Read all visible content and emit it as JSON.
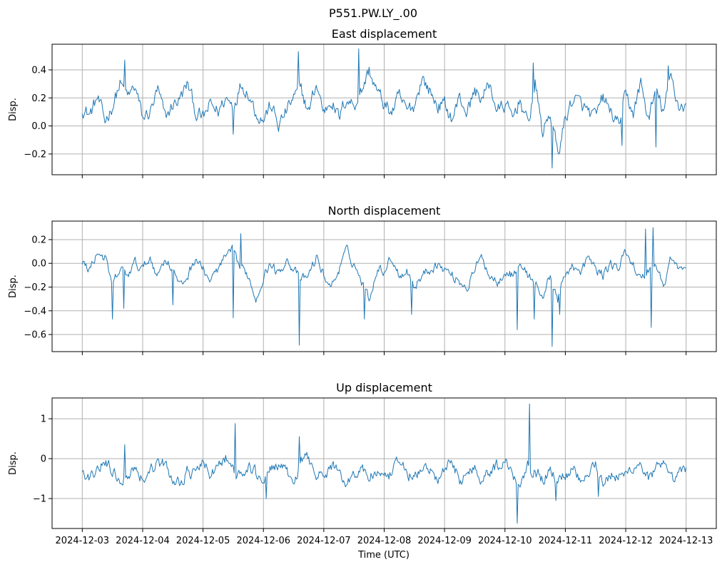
{
  "chart_data": {
    "type": "line",
    "title": "P551.PW.LY_.00",
    "xlabel": "Time (UTC)",
    "x_tick_labels": [
      "2024-12-03",
      "2024-12-04",
      "2024-12-05",
      "2024-12-06",
      "2024-12-07",
      "2024-12-08",
      "2024-12-09",
      "2024-12-10",
      "2024-12-11",
      "2024-12-12",
      "2024-12-13"
    ],
    "x_unit": "days since 2024-12-03 00:00",
    "xlim": [
      -0.5,
      10.5
    ],
    "sample_interval_days": 0.125,
    "grid": true,
    "line_color": "#1f77b4",
    "subplots": [
      {
        "title": "East displacement",
        "ylabel": "Disp.",
        "ylim": [
          -0.348,
          0.583
        ],
        "y_ticks": [
          -0.2,
          0.0,
          0.2,
          0.4
        ],
        "y_tick_labels": [
          "−0.2",
          "0.0",
          "0.2",
          "0.4"
        ],
        "noise": 0.045,
        "values": [
          0.13,
          0.08,
          0.2,
          0.03,
          0.15,
          0.3,
          0.2,
          0.28,
          0.05,
          0.1,
          0.25,
          0.05,
          0.15,
          0.2,
          0.3,
          0.1,
          0.05,
          0.15,
          0.1,
          0.2,
          0.15,
          0.3,
          0.25,
          0.1,
          0.05,
          0.15,
          0.0,
          0.1,
          0.2,
          0.25,
          0.1,
          0.3,
          0.1,
          0.2,
          0.05,
          0.2,
          0.15,
          0.25,
          0.4,
          0.25,
          0.15,
          0.1,
          0.2,
          0.1,
          0.15,
          0.35,
          0.25,
          0.15,
          0.15,
          0.05,
          0.2,
          0.1,
          0.25,
          0.2,
          0.3,
          0.1,
          0.15,
          0.05,
          0.2,
          0.0,
          0.3,
          -0.05,
          0.1,
          -0.2,
          0.05,
          0.2,
          0.15,
          0.1,
          0.05,
          0.2,
          0.1,
          0.0,
          0.2,
          0.1,
          0.3,
          0.05,
          0.25,
          0.1,
          0.35,
          0.15,
          0.15
        ],
        "spikes": [
          [
            0.71,
            0.47
          ],
          [
            2.5,
            -0.06
          ],
          [
            3.58,
            0.53
          ],
          [
            4.58,
            0.55
          ],
          [
            7.47,
            0.45
          ],
          [
            7.78,
            -0.3
          ],
          [
            8.94,
            -0.14
          ],
          [
            9.5,
            -0.15
          ],
          [
            9.7,
            0.43
          ]
        ]
      },
      {
        "title": "North displacement",
        "ylabel": "Disp.",
        "ylim": [
          -0.744,
          0.356
        ],
        "y_ticks": [
          -0.6,
          -0.4,
          -0.2,
          0.0,
          0.2
        ],
        "y_tick_labels": [
          "−0.6",
          "−0.4",
          "−0.2",
          "0.0",
          "0.2"
        ],
        "noise": 0.035,
        "values": [
          0.0,
          -0.05,
          0.1,
          0.05,
          -0.2,
          -0.05,
          -0.1,
          0.0,
          -0.05,
          0.05,
          -0.1,
          0.05,
          -0.05,
          -0.2,
          -0.1,
          0.05,
          -0.05,
          -0.15,
          -0.05,
          0.05,
          0.1,
          -0.05,
          -0.1,
          -0.3,
          -0.1,
          0.0,
          -0.1,
          0.05,
          -0.05,
          -0.15,
          -0.1,
          0.05,
          -0.1,
          -0.2,
          -0.05,
          0.1,
          0.0,
          -0.15,
          -0.3,
          -0.05,
          -0.05,
          0.05,
          -0.1,
          -0.05,
          -0.2,
          -0.1,
          -0.05,
          0.0,
          -0.05,
          -0.1,
          -0.15,
          -0.2,
          -0.05,
          0.05,
          -0.1,
          -0.15,
          -0.05,
          -0.1,
          0.0,
          -0.1,
          -0.15,
          -0.3,
          -0.1,
          -0.3,
          -0.1,
          0.0,
          -0.1,
          0.05,
          -0.05,
          -0.1,
          0.0,
          -0.05,
          0.1,
          0.0,
          -0.15,
          -0.05,
          0.0,
          -0.2,
          0.05,
          -0.05,
          -0.05
        ],
        "spikes": [
          [
            0.5,
            -0.47
          ],
          [
            0.68,
            -0.38
          ],
          [
            1.5,
            -0.35
          ],
          [
            2.5,
            -0.46
          ],
          [
            2.63,
            0.25
          ],
          [
            3.6,
            -0.69
          ],
          [
            4.67,
            -0.47
          ],
          [
            5.45,
            -0.43
          ],
          [
            7.2,
            -0.56
          ],
          [
            7.48,
            -0.47
          ],
          [
            7.78,
            -0.7
          ],
          [
            7.9,
            -0.43
          ],
          [
            9.33,
            0.29
          ],
          [
            9.42,
            -0.54
          ],
          [
            9.45,
            0.3
          ]
        ]
      },
      {
        "title": "Up displacement",
        "ylabel": "Disp.",
        "ylim": [
          -1.75,
          1.52
        ],
        "y_ticks": [
          -1,
          0,
          1
        ],
        "y_tick_labels": [
          "−1",
          "0",
          "1"
        ],
        "noise": 0.13,
        "values": [
          -0.3,
          -0.6,
          -0.2,
          -0.1,
          -0.3,
          -0.5,
          -0.4,
          -0.2,
          -0.5,
          -0.3,
          -0.1,
          -0.2,
          -0.5,
          -0.6,
          -0.3,
          -0.4,
          -0.1,
          -0.4,
          -0.2,
          0.0,
          -0.3,
          -0.5,
          -0.2,
          -0.4,
          -0.5,
          -0.3,
          -0.1,
          -0.4,
          -0.6,
          -0.1,
          0.0,
          -0.3,
          -0.5,
          -0.2,
          -0.3,
          -0.6,
          -0.4,
          -0.2,
          -0.5,
          -0.3,
          -0.6,
          -0.4,
          -0.1,
          -0.3,
          -0.5,
          -0.3,
          -0.2,
          -0.6,
          -0.3,
          -0.1,
          -0.5,
          -0.4,
          -0.2,
          -0.5,
          -0.3,
          -0.2,
          0.0,
          -0.4,
          -0.6,
          -0.1,
          -0.3,
          -0.5,
          -0.3,
          -0.6,
          -0.4,
          -0.2,
          -0.5,
          -0.3,
          -0.1,
          -0.6,
          -0.4,
          -0.5,
          -0.4,
          -0.2,
          -0.1,
          -0.5,
          -0.3,
          -0.2,
          -0.6,
          -0.4,
          -0.3
        ],
        "spikes": [
          [
            0.7,
            0.35
          ],
          [
            2.53,
            0.88
          ],
          [
            3.05,
            -1.0
          ],
          [
            3.6,
            0.55
          ],
          [
            7.2,
            -1.62
          ],
          [
            7.4,
            1.37
          ],
          [
            7.85,
            -1.05
          ],
          [
            8.55,
            -0.95
          ]
        ]
      }
    ]
  }
}
